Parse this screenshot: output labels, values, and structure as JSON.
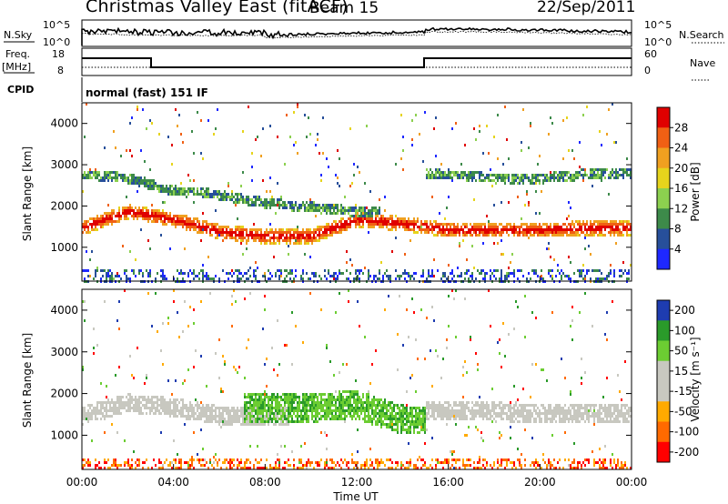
{
  "header": {
    "title": "Christmas Valley East (fitACF)",
    "beam": "Beam 15",
    "date": "22/Sep/2011"
  },
  "params": {
    "nsky_label": "N.Sky",
    "nsky_ticks": [
      "10^5",
      "10^0"
    ],
    "nsearch_label": "N.Search",
    "nsearch_ticks": [
      "10^5",
      "10^0"
    ],
    "freq_label": "Freq.",
    "freq_unit": "[MHz]",
    "freq_ticks": [
      "18",
      "8"
    ],
    "nave_label": "Nave",
    "nave_ticks": [
      "60",
      "0"
    ],
    "cpid_label": "CPID",
    "cpid_value": "normal (fast) 151 IF"
  },
  "colors": {
    "power": [
      "#1e28ff",
      "#274f9a",
      "#3d8a4a",
      "#8cd04f",
      "#e6d41c",
      "#f0a020",
      "#f06014",
      "#e00000"
    ],
    "velocity": [
      "#ff0000",
      "#ff6a00",
      "#ffaa00",
      "#c8c8c0",
      "#c8c8c0",
      "#6ccd32",
      "#2a9a2a",
      "#1e3cb0"
    ]
  },
  "chart_data": [
    {
      "type": "heatmap",
      "panel": "power",
      "xlabel": "",
      "ylabel": "Slant Range [km]",
      "xlim": [
        "00:00",
        "24:00"
      ],
      "ylim": [
        180,
        4500
      ],
      "yticks": [
        "1000",
        "2000",
        "3000",
        "4000"
      ],
      "colorbar_label": "Power [dB]",
      "colorbar_ticks": [
        "4",
        "8",
        "12",
        "16",
        "20",
        "24",
        "28"
      ],
      "colorbar_range": [
        0,
        32
      ],
      "bands": [
        {
          "name": "main_echo",
          "range_km": [
            1500,
            1900,
            1700,
            1400,
            1300,
            1300,
            1700,
            1600,
            1450,
            1450,
            1450,
            1500,
            1500
          ],
          "width_km": 350,
          "power_db": 24
        },
        {
          "name": "upper_echo",
          "range_km": [
            2800,
            2700,
            2400,
            2300,
            2100,
            2000,
            1900,
            null,
            2800,
            2700,
            2700,
            2800,
            2800
          ],
          "width_km": 250,
          "power_db": 12
        }
      ]
    },
    {
      "type": "heatmap",
      "panel": "velocity",
      "xlabel": "Time UT",
      "ylabel": "Slant Range [km]",
      "xlim": [
        "00:00",
        "24:00"
      ],
      "ylim": [
        180,
        4500
      ],
      "xticks": [
        "00:00",
        "04:00",
        "08:00",
        "12:00",
        "16:00",
        "20:00",
        "00:00"
      ],
      "yticks": [
        "1000",
        "2000",
        "3000",
        "4000"
      ],
      "colorbar_label": "Velocity [m s⁻¹]",
      "colorbar_ticks": [
        "200",
        "100",
        "50",
        "15",
        "-15",
        "-50",
        "-100",
        "-200"
      ],
      "colorbar_range": [
        -250,
        250
      ],
      "bands": [
        {
          "name": "ground_scatter",
          "range_km": [
            1500,
            1800,
            1700,
            1500,
            1500,
            null,
            null,
            null,
            1600,
            1600,
            1550,
            1550,
            1550
          ],
          "width_km": 450,
          "velocity_ms": 0
        },
        {
          "name": "ionospheric",
          "range_km": [
            null,
            null,
            null,
            null,
            1700,
            1700,
            1750,
            1400,
            null,
            null,
            null,
            null,
            null
          ],
          "width_km": 700,
          "velocity_ms": 60
        }
      ]
    }
  ]
}
